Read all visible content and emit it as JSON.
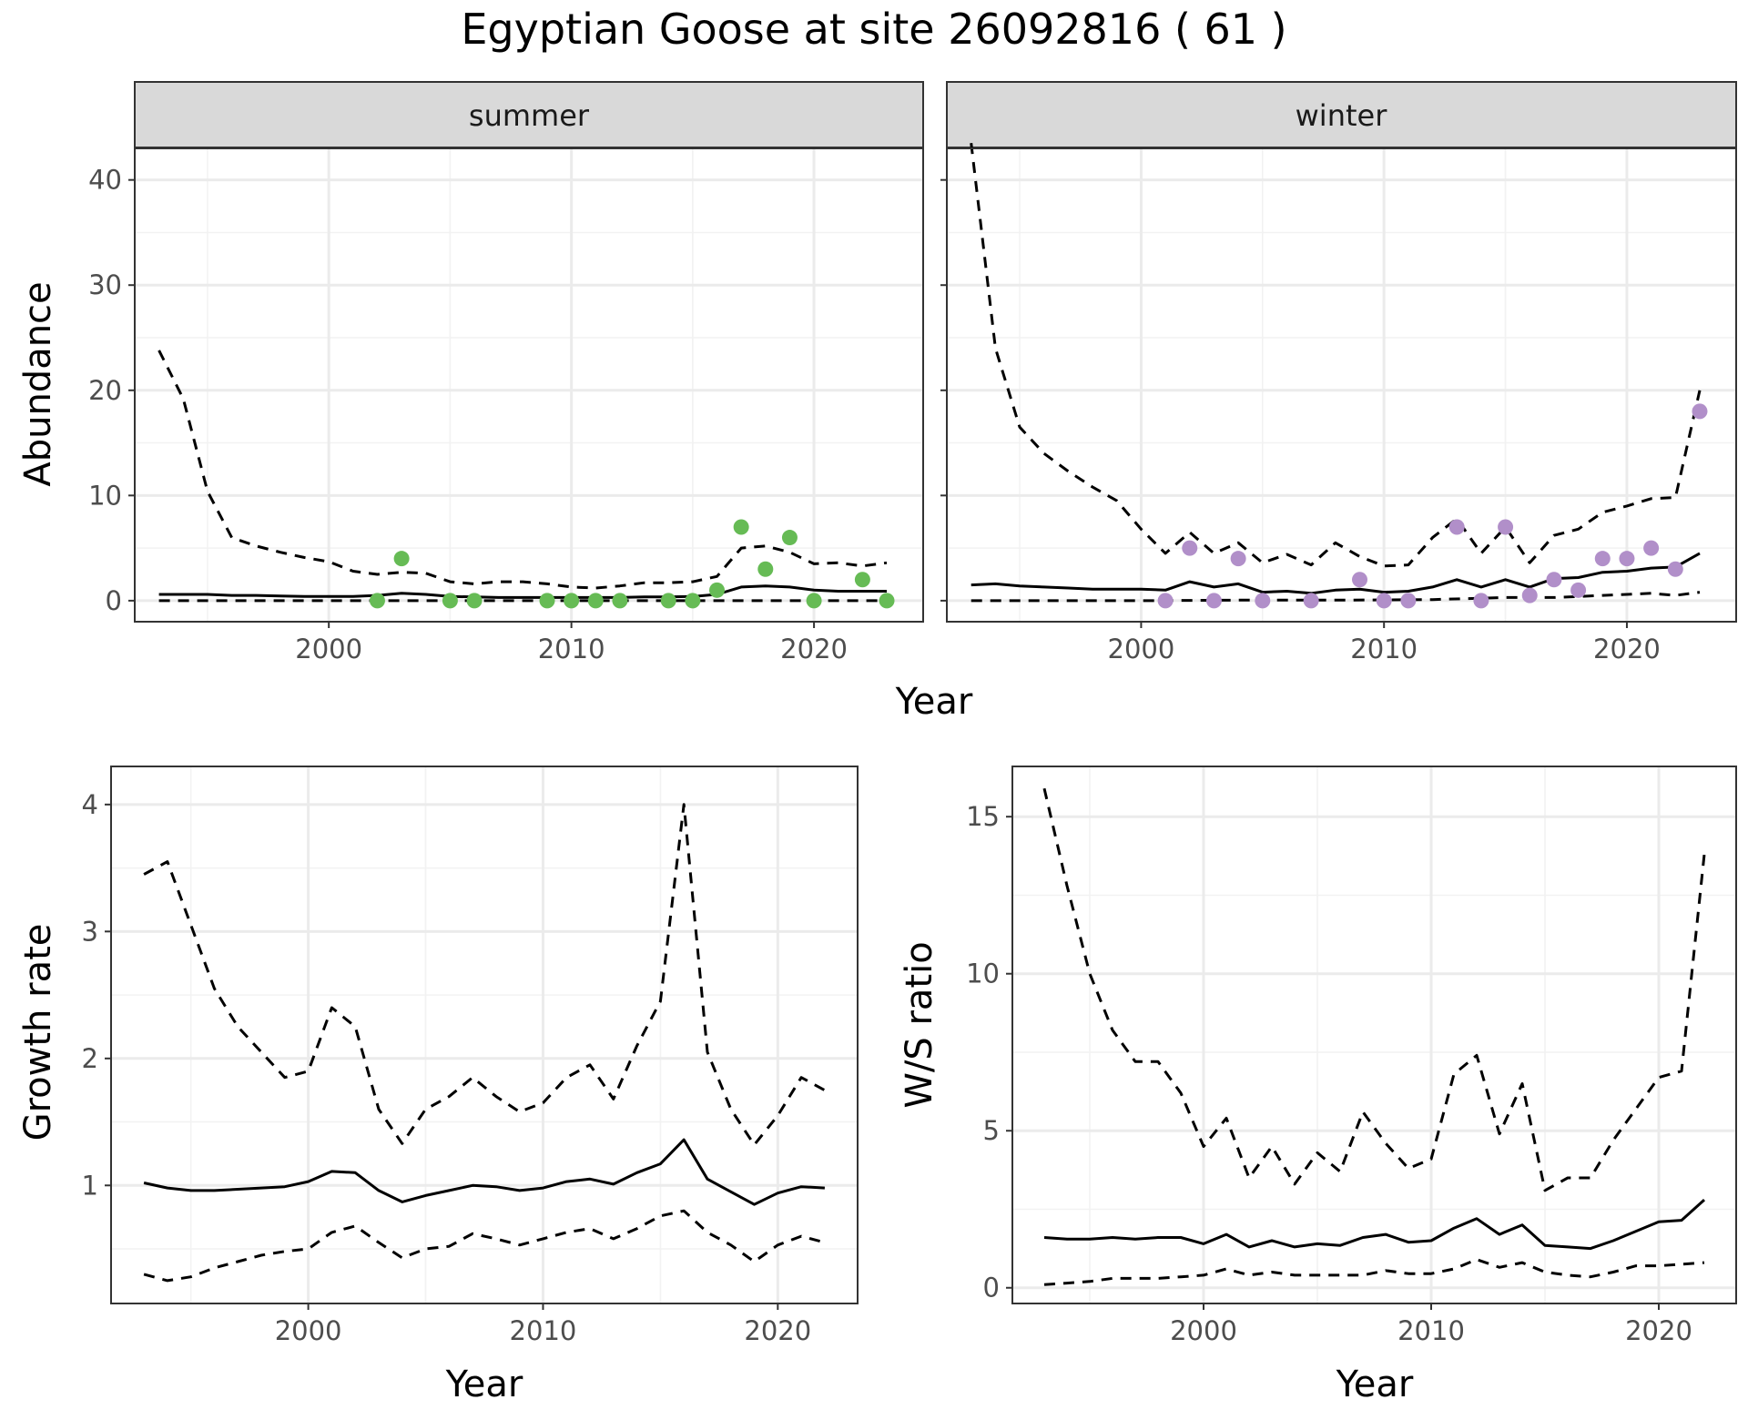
{
  "title": "Egyptian Goose at site 26092816 ( 61 )",
  "colors": {
    "summer_points": "#66bb55",
    "winter_points": "#b18fc9",
    "lines": "#000000",
    "strip_fill": "#d9d9d9",
    "grid_major": "#ebebeb",
    "grid_minor": "#f2f2f2"
  },
  "chart_data": [
    {
      "type": "line",
      "panel": "summer",
      "strip_label": "summer",
      "xlabel": "Year",
      "ylabel": "Abundance",
      "xlim": [
        1992,
        2024.5
      ],
      "ylim": [
        -2,
        43
      ],
      "x_ticks": [
        2000,
        2010,
        2020
      ],
      "y_ticks": [
        0,
        10,
        20,
        30,
        40
      ],
      "grid": true,
      "series": [
        {
          "role": "estimate",
          "style": "solid",
          "x": [
            1993,
            1994,
            1995,
            1996,
            1997,
            1998,
            1999,
            2000,
            2001,
            2002,
            2003,
            2004,
            2005,
            2006,
            2007,
            2008,
            2009,
            2010,
            2011,
            2012,
            2013,
            2014,
            2015,
            2016,
            2017,
            2018,
            2019,
            2020,
            2021,
            2022,
            2023
          ],
          "y": [
            0.6,
            0.6,
            0.6,
            0.5,
            0.5,
            0.45,
            0.4,
            0.4,
            0.4,
            0.5,
            0.7,
            0.6,
            0.4,
            0.35,
            0.3,
            0.3,
            0.3,
            0.3,
            0.3,
            0.3,
            0.35,
            0.35,
            0.4,
            0.6,
            1.3,
            1.4,
            1.3,
            1.0,
            0.9,
            0.9,
            0.9
          ]
        },
        {
          "role": "upper",
          "style": "dashed",
          "x": [
            1993,
            1994,
            1995,
            1996,
            1997,
            1998,
            1999,
            2000,
            2001,
            2002,
            2003,
            2004,
            2005,
            2006,
            2007,
            2008,
            2009,
            2010,
            2011,
            2012,
            2013,
            2014,
            2015,
            2016,
            2017,
            2018,
            2019,
            2020,
            2021,
            2022,
            2023
          ],
          "y": [
            23.8,
            19.2,
            10.4,
            6.0,
            5.2,
            4.6,
            4.1,
            3.7,
            2.8,
            2.5,
            2.7,
            2.6,
            1.8,
            1.6,
            1.8,
            1.8,
            1.6,
            1.3,
            1.2,
            1.4,
            1.7,
            1.7,
            1.8,
            2.3,
            5.0,
            5.2,
            4.6,
            3.5,
            3.6,
            3.3,
            3.6
          ]
        },
        {
          "role": "lower",
          "style": "dashed",
          "x": [
            1993,
            2023
          ],
          "y": [
            0,
            0
          ]
        }
      ],
      "points": {
        "x": [
          2002,
          2003,
          2005,
          2006,
          2009,
          2010,
          2011,
          2012,
          2014,
          2015,
          2016,
          2017,
          2018,
          2019,
          2020,
          2022,
          2023
        ],
        "y": [
          0,
          4,
          0,
          0,
          0,
          0,
          0,
          0,
          0,
          0,
          1,
          7,
          3,
          6,
          0,
          2,
          0
        ]
      }
    },
    {
      "type": "line",
      "panel": "winter",
      "strip_label": "winter",
      "xlabel": "Year",
      "ylabel": "Abundance",
      "xlim": [
        1992,
        2024.5
      ],
      "ylim": [
        -2,
        43
      ],
      "x_ticks": [
        2000,
        2010,
        2020
      ],
      "y_ticks": [
        0,
        10,
        20,
        30,
        40
      ],
      "grid": true,
      "series": [
        {
          "role": "estimate",
          "style": "solid",
          "x": [
            1993,
            1994,
            1995,
            1996,
            1997,
            1998,
            1999,
            2000,
            2001,
            2002,
            2003,
            2004,
            2005,
            2006,
            2007,
            2008,
            2009,
            2010,
            2011,
            2012,
            2013,
            2014,
            2015,
            2016,
            2017,
            2018,
            2019,
            2020,
            2021,
            2022,
            2023
          ],
          "y": [
            1.5,
            1.6,
            1.4,
            1.3,
            1.2,
            1.1,
            1.1,
            1.1,
            1.0,
            1.8,
            1.3,
            1.6,
            0.8,
            0.9,
            0.7,
            1.0,
            1.1,
            0.8,
            0.9,
            1.3,
            2.0,
            1.3,
            2.0,
            1.3,
            2.1,
            2.2,
            2.7,
            2.8,
            3.1,
            3.2,
            4.5
          ]
        },
        {
          "role": "upper",
          "style": "dashed",
          "x": [
            1993,
            1994,
            1995,
            1996,
            1997,
            1998,
            1999,
            2000,
            2001,
            2002,
            2003,
            2004,
            2005,
            2006,
            2007,
            2008,
            2009,
            2010,
            2011,
            2012,
            2013,
            2014,
            2015,
            2016,
            2017,
            2018,
            2019,
            2020,
            2021,
            2022,
            2023
          ],
          "y": [
            43.5,
            24.0,
            16.5,
            14.0,
            12.3,
            10.8,
            9.5,
            6.8,
            4.5,
            6.5,
            4.5,
            5.5,
            3.6,
            4.4,
            3.4,
            5.5,
            4.2,
            3.3,
            3.4,
            6.0,
            7.8,
            4.5,
            7.0,
            3.6,
            6.2,
            6.8,
            8.4,
            9.0,
            9.7,
            9.8,
            20.0
          ]
        },
        {
          "role": "lower",
          "style": "dashed",
          "x": [
            1993,
            2000,
            2004,
            2008,
            2012,
            2015,
            2017,
            2018,
            2019,
            2020,
            2021,
            2022,
            2023
          ],
          "y": [
            0,
            0,
            0.05,
            0.05,
            0.1,
            0.3,
            0.3,
            0.4,
            0.5,
            0.6,
            0.7,
            0.5,
            0.8
          ]
        }
      ],
      "points": {
        "x": [
          2001,
          2002,
          2003,
          2004,
          2005,
          2007,
          2009,
          2010,
          2011,
          2013,
          2014,
          2015,
          2016,
          2017,
          2018,
          2019,
          2020,
          2021,
          2022,
          2023
        ],
        "y": [
          0,
          5,
          0,
          4,
          0,
          0,
          2,
          0,
          0,
          7,
          0,
          7,
          0.5,
          2,
          1,
          4,
          4,
          5,
          3,
          18
        ]
      }
    },
    {
      "type": "line",
      "panel": "growth",
      "xlabel": "Year",
      "ylabel": "Growth rate",
      "xlim": [
        1991.6,
        2023.4
      ],
      "ylim": [
        0.07,
        4.3
      ],
      "x_ticks": [
        2000,
        2010,
        2020
      ],
      "y_ticks": [
        1,
        2,
        3,
        4
      ],
      "grid": true,
      "series": [
        {
          "role": "estimate",
          "style": "solid",
          "x": [
            1993,
            1994,
            1995,
            1996,
            1997,
            1998,
            1999,
            2000,
            2001,
            2002,
            2003,
            2004,
            2005,
            2006,
            2007,
            2008,
            2009,
            2010,
            2011,
            2012,
            2013,
            2014,
            2015,
            2016,
            2017,
            2018,
            2019,
            2020,
            2021,
            2022
          ],
          "y": [
            1.02,
            0.98,
            0.96,
            0.96,
            0.97,
            0.98,
            0.99,
            1.03,
            1.11,
            1.1,
            0.96,
            0.87,
            0.92,
            0.96,
            1.0,
            0.99,
            0.96,
            0.98,
            1.03,
            1.05,
            1.01,
            1.1,
            1.17,
            1.36,
            1.05,
            0.95,
            0.85,
            0.94,
            0.99,
            0.98
          ]
        },
        {
          "role": "upper",
          "style": "dashed",
          "x": [
            1993,
            1994,
            1995,
            1996,
            1997,
            1998,
            1999,
            2000,
            2001,
            2002,
            2003,
            2004,
            2005,
            2006,
            2007,
            2008,
            2009,
            2010,
            2011,
            2012,
            2013,
            2014,
            2015,
            2016,
            2017,
            2018,
            2019,
            2020,
            2021,
            2022
          ],
          "y": [
            3.45,
            3.55,
            3.05,
            2.55,
            2.25,
            2.05,
            1.85,
            1.9,
            2.4,
            2.25,
            1.6,
            1.33,
            1.6,
            1.7,
            1.85,
            1.7,
            1.58,
            1.65,
            1.85,
            1.95,
            1.68,
            2.1,
            2.45,
            4.0,
            2.05,
            1.6,
            1.32,
            1.55,
            1.85,
            1.75
          ]
        },
        {
          "role": "lower",
          "style": "dashed",
          "x": [
            1993,
            1994,
            1995,
            1996,
            1997,
            1998,
            1999,
            2000,
            2001,
            2002,
            2003,
            2004,
            2005,
            2006,
            2007,
            2008,
            2009,
            2010,
            2011,
            2012,
            2013,
            2014,
            2015,
            2016,
            2017,
            2018,
            2019,
            2020,
            2021,
            2022
          ],
          "y": [
            0.3,
            0.25,
            0.28,
            0.35,
            0.4,
            0.45,
            0.48,
            0.5,
            0.63,
            0.68,
            0.55,
            0.43,
            0.5,
            0.52,
            0.62,
            0.58,
            0.53,
            0.58,
            0.63,
            0.66,
            0.58,
            0.66,
            0.76,
            0.8,
            0.63,
            0.53,
            0.4,
            0.53,
            0.6,
            0.55
          ]
        }
      ]
    },
    {
      "type": "line",
      "panel": "ws_ratio",
      "xlabel": "Year",
      "ylabel": "W/S ratio",
      "xlim": [
        1991.6,
        2023.4
      ],
      "ylim": [
        -0.5,
        16.6
      ],
      "x_ticks": [
        2000,
        2010,
        2020
      ],
      "y_ticks": [
        0,
        5,
        10,
        15
      ],
      "grid": true,
      "series": [
        {
          "role": "estimate",
          "style": "solid",
          "x": [
            1993,
            1994,
            1995,
            1996,
            1997,
            1998,
            1999,
            2000,
            2001,
            2002,
            2003,
            2004,
            2005,
            2006,
            2007,
            2008,
            2009,
            2010,
            2011,
            2012,
            2013,
            2014,
            2015,
            2016,
            2017,
            2018,
            2019,
            2020,
            2021,
            2022
          ],
          "y": [
            1.6,
            1.55,
            1.55,
            1.6,
            1.55,
            1.6,
            1.6,
            1.4,
            1.7,
            1.3,
            1.5,
            1.3,
            1.4,
            1.35,
            1.6,
            1.7,
            1.45,
            1.5,
            1.9,
            2.2,
            1.7,
            2.0,
            1.35,
            1.3,
            1.25,
            1.5,
            1.8,
            2.1,
            2.15,
            2.8
          ]
        },
        {
          "role": "upper",
          "style": "dashed",
          "x": [
            1993,
            1994,
            1995,
            1996,
            1997,
            1998,
            1999,
            2000,
            2001,
            2002,
            2003,
            2004,
            2005,
            2006,
            2007,
            2008,
            2009,
            2010,
            2011,
            2012,
            2013,
            2014,
            2015,
            2016,
            2017,
            2018,
            2019,
            2020,
            2021,
            2022
          ],
          "y": [
            15.9,
            12.8,
            10.0,
            8.2,
            7.2,
            7.2,
            6.2,
            4.5,
            5.4,
            3.5,
            4.5,
            3.3,
            4.3,
            3.7,
            5.6,
            4.6,
            3.8,
            4.1,
            6.8,
            7.4,
            4.9,
            6.5,
            3.1,
            3.5,
            3.5,
            4.7,
            5.7,
            6.7,
            6.9,
            13.8
          ]
        },
        {
          "role": "lower",
          "style": "dashed",
          "x": [
            1993,
            1994,
            1995,
            1996,
            1997,
            1998,
            1999,
            2000,
            2001,
            2002,
            2003,
            2004,
            2005,
            2006,
            2007,
            2008,
            2009,
            2010,
            2011,
            2012,
            2013,
            2014,
            2015,
            2016,
            2017,
            2018,
            2019,
            2020,
            2021,
            2022
          ],
          "y": [
            0.1,
            0.15,
            0.2,
            0.3,
            0.3,
            0.3,
            0.35,
            0.4,
            0.6,
            0.4,
            0.5,
            0.4,
            0.4,
            0.4,
            0.4,
            0.55,
            0.45,
            0.45,
            0.6,
            0.9,
            0.65,
            0.8,
            0.5,
            0.4,
            0.35,
            0.5,
            0.7,
            0.7,
            0.75,
            0.8
          ]
        }
      ]
    }
  ]
}
